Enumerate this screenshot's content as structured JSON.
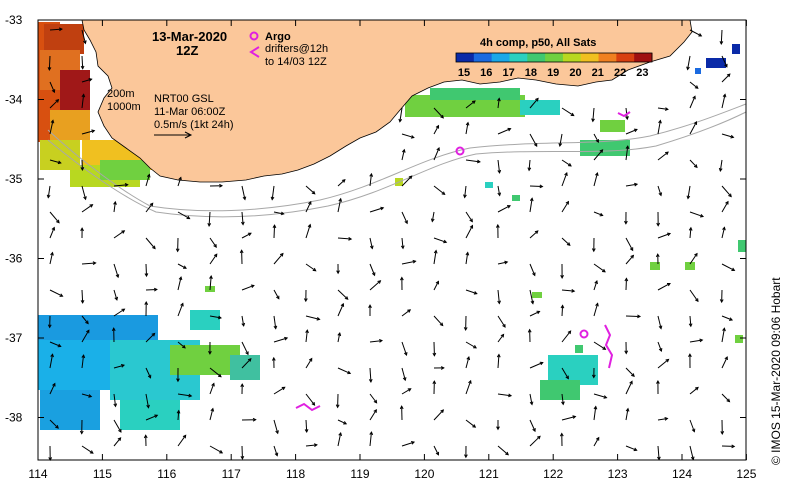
{
  "map": {
    "date": "13-Mar-2020",
    "time": "12Z",
    "argo_label": "Argo",
    "drifters_line1": "drifters@12h",
    "drifters_line2": "to 14/03 12Z",
    "isobath_200": "200m",
    "isobath_1000": "1000m",
    "currents_source": "NRT00 GSL",
    "currents_time": "11-Mar 06:00Z",
    "vector_scale": "0.5m/s (1kt 24h)",
    "credit": "© IMOS 15-Mar-2020 09:06 Hobart"
  },
  "sst_legend": {
    "title": "4h comp, p50, All Sats",
    "ticks": [
      "15",
      "16",
      "17",
      "18",
      "19",
      "20",
      "21",
      "22",
      "23"
    ],
    "colors": [
      "#0a2aa8",
      "#1a6ae0",
      "#1aa8e8",
      "#2ad0c0",
      "#40c870",
      "#70d040",
      "#b8d820",
      "#f0c020",
      "#f08020",
      "#d84010",
      "#a01010"
    ]
  },
  "axes": {
    "lon_labels": [
      "114",
      "115",
      "116",
      "117",
      "118",
      "119",
      "120",
      "121",
      "122",
      "123",
      "124",
      "125"
    ],
    "lat_labels": [
      "-33",
      "-34",
      "-35",
      "-36",
      "-37",
      "-38"
    ]
  },
  "colors": {
    "land": "#fbc79a",
    "argo": "#e020e0",
    "drifter": "#e020e0"
  }
}
